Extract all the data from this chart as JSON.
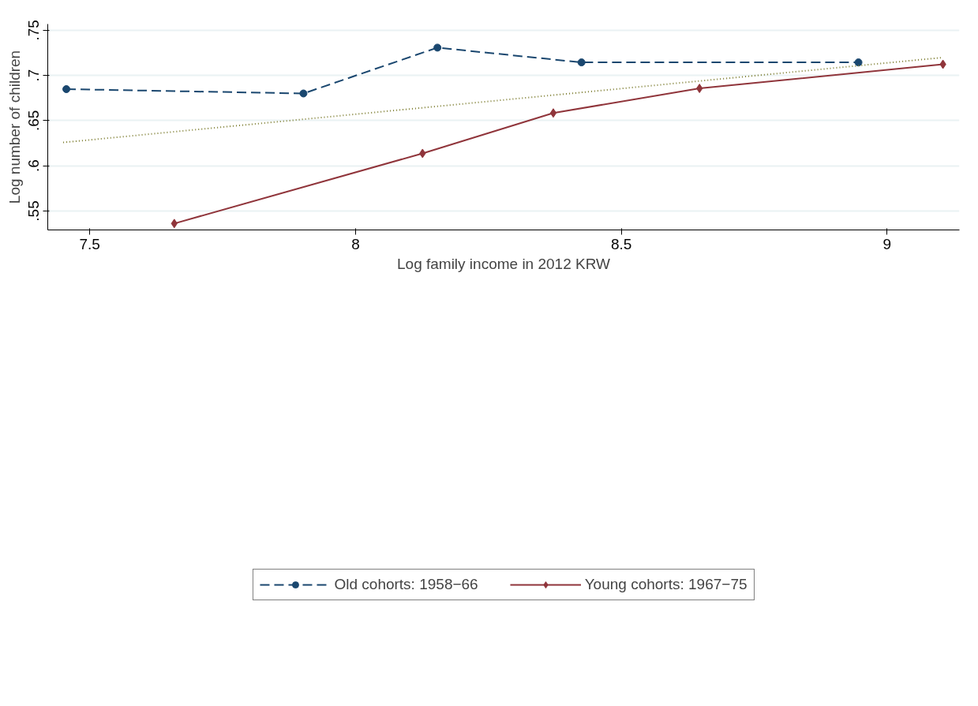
{
  "chart_data": {
    "type": "line",
    "xlabel": "Log family income in 2012 KRW",
    "ylabel": "Log number of children",
    "xlim": [
      7.421,
      9.136
    ],
    "ylim": [
      0.529,
      0.7568
    ],
    "xticks": [
      7.5,
      8,
      8.5,
      9
    ],
    "yticks": [
      {
        "value": 0.55,
        "label": ".55"
      },
      {
        "value": 0.6,
        "label": ".6"
      },
      {
        "value": 0.65,
        "label": ".65"
      },
      {
        "value": 0.7,
        "label": ".7"
      },
      {
        "value": 0.75,
        "label": ".75"
      }
    ],
    "grid": "y",
    "legend": "bottom",
    "series": [
      {
        "name": "Old cohorts: 1958−66",
        "color": "#1a476f",
        "marker": "circle",
        "line_style": "dashed",
        "x": [
          7.456,
          7.902,
          8.154,
          8.425,
          8.946
        ],
        "values": [
          0.6848,
          0.68,
          0.7307,
          0.7144,
          0.7144
        ]
      },
      {
        "name": "Young cohorts: 1967−75",
        "color": "#90353b",
        "marker": "diamond",
        "line_style": "solid",
        "x": [
          7.659,
          8.126,
          8.372,
          8.647,
          9.105
        ],
        "values": [
          0.5361,
          0.6137,
          0.6584,
          0.6856,
          0.7123
        ]
      },
      {
        "color": "#7d7d30",
        "marker": "none",
        "line_style": "dotted",
        "x": [
          7.45,
          9.105
        ],
        "values": [
          0.6258,
          0.7198
        ]
      }
    ]
  }
}
